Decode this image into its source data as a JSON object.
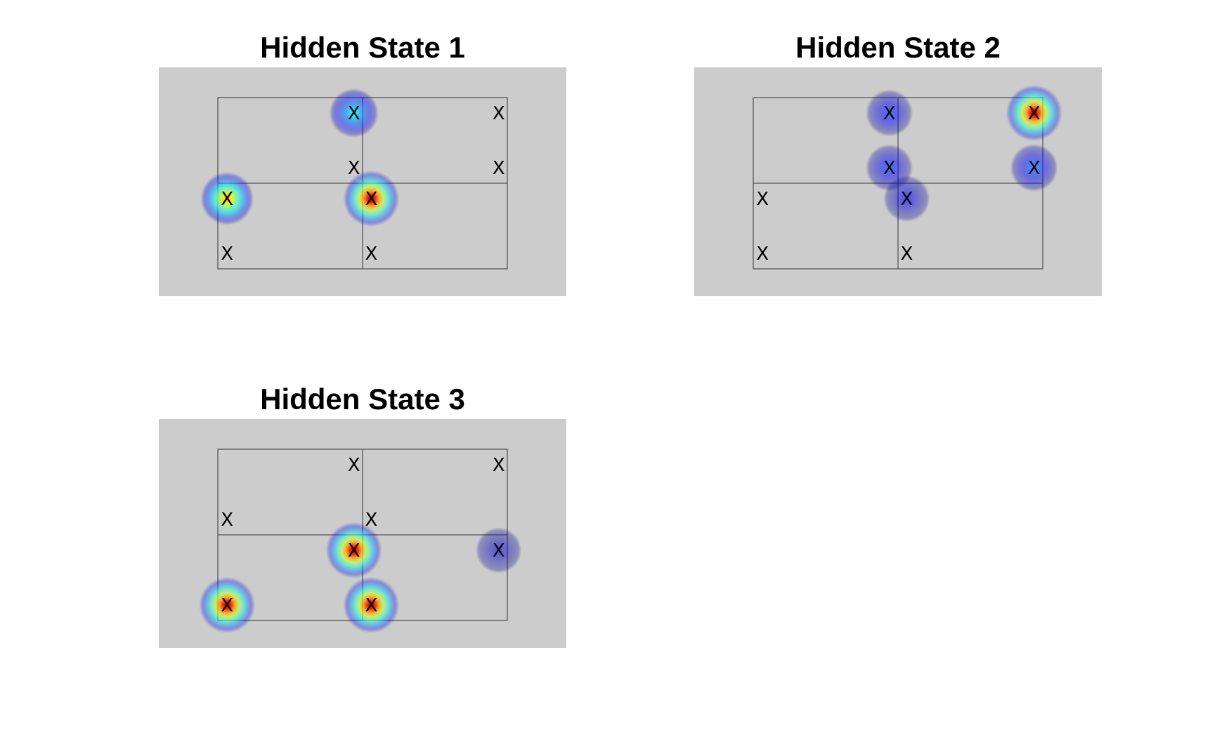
{
  "chart_data": [
    {
      "type": "heatmap",
      "title": "Hidden State 1",
      "grid": true,
      "colormap": "jet",
      "marker_label": "X",
      "xlim": [
        0,
        1
      ],
      "ylim": [
        0,
        1
      ],
      "colors": {
        "background": "#cccccc",
        "grid_line": "#555555"
      },
      "points": [
        {
          "x": 0.032,
          "y": 0.41,
          "value": 0.75
        },
        {
          "x": 0.47,
          "y": 0.91,
          "value": 0.4
        },
        {
          "x": 0.53,
          "y": 0.41,
          "value": 1.0
        },
        {
          "x": 0.97,
          "y": 0.91,
          "value": 0
        },
        {
          "x": 0.47,
          "y": 0.59,
          "value": 0
        },
        {
          "x": 0.97,
          "y": 0.59,
          "value": 0
        },
        {
          "x": 0.032,
          "y": 0.09,
          "value": 0
        },
        {
          "x": 0.53,
          "y": 0.09,
          "value": 0
        }
      ]
    },
    {
      "type": "heatmap",
      "title": "Hidden State 2",
      "grid": true,
      "colormap": "jet",
      "marker_label": "X",
      "xlim": [
        0,
        1
      ],
      "ylim": [
        0,
        1
      ],
      "colors": {
        "background": "#cccccc",
        "grid_line": "#555555"
      },
      "points": [
        {
          "x": 0.47,
          "y": 0.91,
          "value": 0.2
        },
        {
          "x": 0.97,
          "y": 0.91,
          "value": 1.0
        },
        {
          "x": 0.032,
          "y": 0.41,
          "value": 0
        },
        {
          "x": 0.53,
          "y": 0.41,
          "value": 0.15
        },
        {
          "x": 0.47,
          "y": 0.59,
          "value": 0.2
        },
        {
          "x": 0.97,
          "y": 0.59,
          "value": 0.25
        },
        {
          "x": 0.032,
          "y": 0.09,
          "value": 0
        },
        {
          "x": 0.53,
          "y": 0.09,
          "value": 0
        }
      ]
    },
    {
      "type": "heatmap",
      "title": "Hidden State 3",
      "grid": true,
      "colormap": "jet",
      "marker_label": "X",
      "xlim": [
        0,
        1
      ],
      "ylim": [
        0,
        1
      ],
      "colors": {
        "background": "#cccccc",
        "grid_line": "#555555"
      },
      "points": [
        {
          "x": 0.47,
          "y": 0.91,
          "value": 0
        },
        {
          "x": 0.97,
          "y": 0.91,
          "value": 0
        },
        {
          "x": 0.032,
          "y": 0.59,
          "value": 0
        },
        {
          "x": 0.53,
          "y": 0.59,
          "value": 0
        },
        {
          "x": 0.47,
          "y": 0.41,
          "value": 1.0
        },
        {
          "x": 0.97,
          "y": 0.41,
          "value": 0.1
        },
        {
          "x": 0.032,
          "y": 0.09,
          "value": 1.0
        },
        {
          "x": 0.53,
          "y": 0.09,
          "value": 1.0
        }
      ]
    }
  ]
}
